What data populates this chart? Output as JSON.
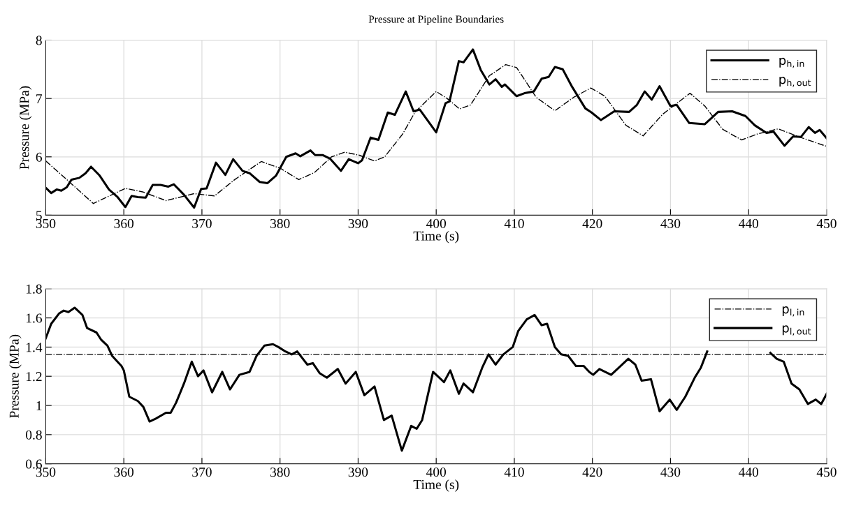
{
  "chart_data": [
    {
      "type": "line",
      "title": "Pressure at Pipeline Boundaries",
      "xlabel": "Time (s)",
      "ylabel": "Pressure (MPa)",
      "xlim": [
        350,
        450
      ],
      "xticks": [
        350,
        360,
        370,
        380,
        390,
        400,
        410,
        420,
        430,
        440,
        450
      ],
      "ylim": [
        5,
        8
      ],
      "yticks": [
        5,
        6,
        7,
        8
      ],
      "grid": true,
      "legend": "top right",
      "series": [
        {
          "name": "p$_{h,in}$",
          "color": "#000000",
          "line_style": "solid",
          "x": [
            350,
            350.7,
            351.4,
            352,
            352.7,
            353.3,
            354.3,
            355.1,
            355.8,
            356.9,
            358.1,
            359.2,
            360.2,
            361.0,
            361.8,
            362.8,
            363.7,
            364.7,
            365.7,
            366.4,
            367.7,
            369.0,
            369.9,
            370.6,
            371.8,
            373.0,
            374.0,
            375.2,
            376.1,
            377.4,
            378.4,
            379.5,
            380.8,
            382.0,
            382.6,
            383.9,
            384.5,
            385.5,
            386.4,
            387.8,
            388.8,
            390,
            390.5,
            391.6,
            392.6,
            393.8,
            394.7,
            396.1,
            397.1,
            397.9,
            400,
            401.2,
            401.7,
            402.9,
            403.5,
            404.7,
            405.7,
            406.8,
            407.6,
            408.4,
            408.8,
            410.3,
            411.3,
            412.5,
            413.5,
            414.4,
            415.2,
            416.2,
            417.4,
            419.1,
            419.9,
            421.1,
            422.8,
            424.7,
            425.7,
            426.7,
            427.6,
            428.6,
            430,
            430.8,
            432.4,
            434.4,
            436.1,
            437.9,
            439.6,
            440.8,
            442.3,
            443.2,
            444.6,
            445.7,
            446.7,
            447.7,
            448.5,
            449.1,
            450
          ],
          "values": [
            5.47,
            5.38,
            5.44,
            5.42,
            5.48,
            5.61,
            5.64,
            5.72,
            5.83,
            5.68,
            5.44,
            5.31,
            5.14,
            5.33,
            5.31,
            5.3,
            5.52,
            5.52,
            5.49,
            5.53,
            5.35,
            5.13,
            5.45,
            5.46,
            5.9,
            5.69,
            5.96,
            5.76,
            5.72,
            5.57,
            5.55,
            5.68,
            6.0,
            6.06,
            6.01,
            6.11,
            6.03,
            6.03,
            5.97,
            5.76,
            5.96,
            5.89,
            5.94,
            6.33,
            6.29,
            6.76,
            6.72,
            7.12,
            6.78,
            6.81,
            6.42,
            6.92,
            6.95,
            7.64,
            7.62,
            7.84,
            7.49,
            7.24,
            7.33,
            7.2,
            7.24,
            7.04,
            7.09,
            7.12,
            7.34,
            7.37,
            7.54,
            7.5,
            7.2,
            6.83,
            6.76,
            6.63,
            6.78,
            6.77,
            6.89,
            7.12,
            6.98,
            7.21,
            6.87,
            6.89,
            6.58,
            6.56,
            6.77,
            6.78,
            6.7,
            6.54,
            6.41,
            6.43,
            6.19,
            6.35,
            6.34,
            6.51,
            6.41,
            6.46,
            6.32
          ]
        },
        {
          "name": "p$_{h,out}$",
          "color": "#000000",
          "line_style": "dashdot",
          "x": [
            350,
            352.7,
            356.1,
            360.2,
            362.4,
            365.4,
            369.0,
            371.6,
            374.2,
            377.6,
            380.1,
            382.4,
            384.4,
            386.6,
            388.3,
            390.1,
            392.1,
            393.4,
            395.7,
            397.3,
            400,
            401.4,
            403.0,
            404.4,
            406.8,
            408.9,
            410.3,
            412.8,
            415.2,
            417.6,
            419.8,
            421.6,
            424.3,
            426.5,
            429.0,
            432.5,
            434.4,
            436.7,
            439.1,
            441.1,
            443.8,
            446.5,
            450
          ],
          "values": [
            5.93,
            5.61,
            5.2,
            5.46,
            5.4,
            5.25,
            5.37,
            5.33,
            5.61,
            5.92,
            5.8,
            5.61,
            5.73,
            6.0,
            6.08,
            6.03,
            5.93,
            6.0,
            6.39,
            6.77,
            7.12,
            7.0,
            6.82,
            6.89,
            7.39,
            7.58,
            7.53,
            7.02,
            6.79,
            7.02,
            7.18,
            7.04,
            6.54,
            6.36,
            6.73,
            7.09,
            6.87,
            6.47,
            6.29,
            6.39,
            6.48,
            6.34,
            6.18
          ]
        }
      ]
    },
    {
      "type": "line",
      "xlabel": "Time (s)",
      "ylabel": "Pressure (MPa)",
      "xlim": [
        350,
        450
      ],
      "xticks": [
        350,
        360,
        370,
        380,
        390,
        400,
        410,
        420,
        430,
        440,
        450
      ],
      "ylim": [
        0.6,
        1.8
      ],
      "yticks": [
        0.6,
        0.8,
        1,
        1.2,
        1.4,
        1.6,
        1.8
      ],
      "grid": true,
      "legend": "top right",
      "series": [
        {
          "name": "p$_{l,in}$",
          "color": "#000000",
          "line_style": "dashdot",
          "x": [
            350,
            450
          ],
          "values": [
            1.35,
            1.35
          ]
        },
        {
          "name": "p$_{l,out}$",
          "color": "#000000",
          "line_style": "solid",
          "x": [
            350,
            350.7,
            351.7,
            352.3,
            352.9,
            353.7,
            354.7,
            355.3,
            356.5,
            357.1,
            357.9,
            358.5,
            359.7,
            360.0,
            360.7,
            361.8,
            362.5,
            363.3,
            364.1,
            365.4,
            366.0,
            366.7,
            367.7,
            368.7,
            369.5,
            370.2,
            371.3,
            372.6,
            373.6,
            374.8,
            376.1,
            377.0,
            378.0,
            379.1,
            379.8,
            380.7,
            381.5,
            382.2,
            383.5,
            384.2,
            385.1,
            386.0,
            387.4,
            388.4,
            389.7,
            390.8,
            392.1,
            393.3,
            394.3,
            395.6,
            396.8,
            397.5,
            398.2,
            399.6,
            401,
            401.8,
            402.9,
            403.5,
            404.7,
            405.9,
            406.7,
            407.6,
            408.6,
            409.8,
            410.5,
            411.6,
            412.6,
            413.5,
            414.2,
            415.2,
            416.0,
            416.9,
            417.9,
            418.9,
            419.6,
            420.1,
            420.9,
            422.4,
            423.6,
            424.6,
            425.5,
            426.3,
            427.5,
            428.6,
            429.9,
            430.8,
            431.9,
            433.1,
            433.9,
            434.7,
            439,
            442.8,
            443.6,
            444.5,
            445.5,
            446.5,
            447.6,
            448.6,
            449.3,
            450
          ],
          "values": [
            1.46,
            1.56,
            1.63,
            1.65,
            1.64,
            1.67,
            1.62,
            1.53,
            1.5,
            1.45,
            1.41,
            1.34,
            1.27,
            1.24,
            1.06,
            1.03,
            0.99,
            0.89,
            0.91,
            0.95,
            0.95,
            1.02,
            1.15,
            1.3,
            1.2,
            1.24,
            1.09,
            1.23,
            1.11,
            1.21,
            1.23,
            1.34,
            1.41,
            1.42,
            1.4,
            1.37,
            1.35,
            1.37,
            1.28,
            1.29,
            1.22,
            1.19,
            1.25,
            1.15,
            1.23,
            1.07,
            1.13,
            0.9,
            0.93,
            0.69,
            0.86,
            0.84,
            0.9,
            1.23,
            1.16,
            1.24,
            1.08,
            1.15,
            1.09,
            1.26,
            1.35,
            1.28,
            1.35,
            1.4,
            1.51,
            1.59,
            1.62,
            1.55,
            1.56,
            1.4,
            1.35,
            1.34,
            1.27,
            1.27,
            1.23,
            1.21,
            1.25,
            1.21,
            1.27,
            1.32,
            1.28,
            1.17,
            1.18,
            0.96,
            1.04,
            0.97,
            1.06,
            1.19,
            1.26,
            1.37,
            null,
            1.36,
            1.32,
            1.3,
            1.15,
            1.11,
            1.01,
            1.04,
            1.01,
            1.08
          ]
        }
      ]
    }
  ]
}
